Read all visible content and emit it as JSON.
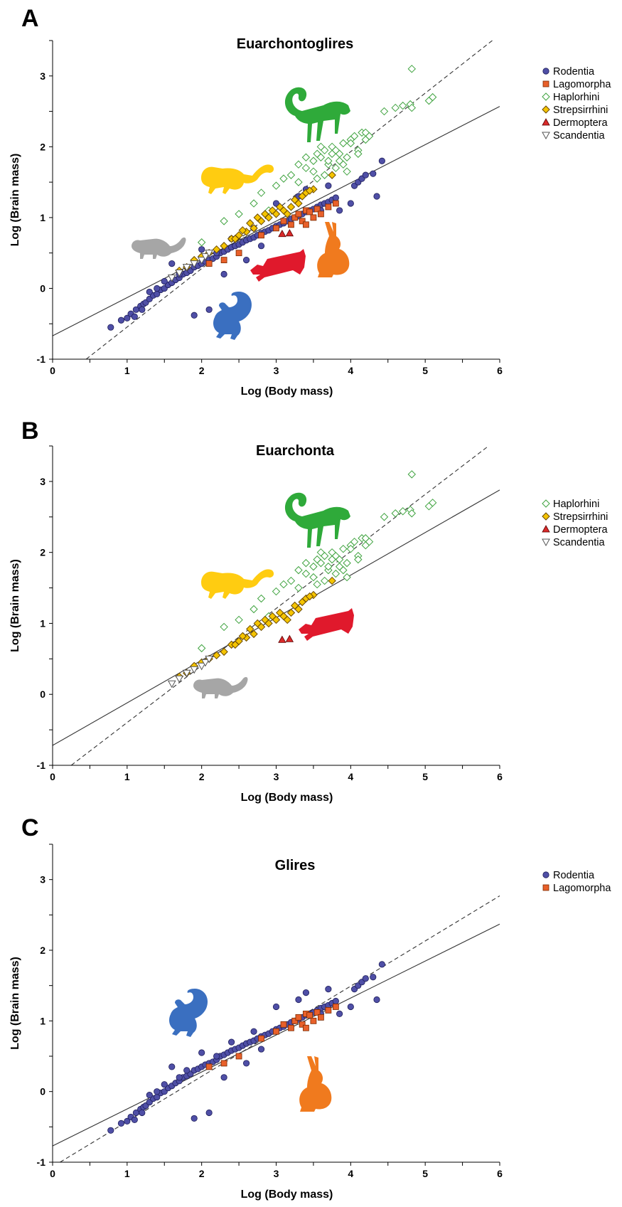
{
  "panels": [
    {
      "letter": "A"
    },
    {
      "letter": "B"
    },
    {
      "letter": "C"
    }
  ],
  "colors": {
    "rodentia": "#4f4fa6",
    "lagomorpha": "#e8602a",
    "haplorhini": "#3fa33f",
    "strepsirrhini": "#f5c400",
    "dermoptera": "#d92a2a",
    "scandentia": "#ffffff",
    "monkey_silhouette": "#2faa3a",
    "lemur_silhouette": "#ffcc11",
    "treeshrew_silhouette": "#a6a6a6",
    "colugo_silhouette": "#e0192c",
    "hare_silhouette": "#f07a1e",
    "squirrel_silhouette": "#3a6fc0"
  },
  "silhouette_icons": {
    "A": [
      "monkey-silhouette",
      "lemur-silhouette",
      "treeshrew-silhouette",
      "colugo-silhouette",
      "hare-silhouette",
      "squirrel-silhouette"
    ],
    "B": [
      "monkey-silhouette",
      "lemur-silhouette",
      "colugo-silhouette",
      "treeshrew-silhouette"
    ],
    "C": [
      "squirrel-silhouette",
      "hare-silhouette"
    ]
  },
  "chart_data": [
    {
      "panel": "A",
      "type": "scatter",
      "title": "Euarchontoglires",
      "xlabel": "Log (Body mass)",
      "ylabel": "Log (Brain mass)",
      "xlim": [
        0,
        6
      ],
      "ylim": [
        -1,
        3.5
      ],
      "xticks": [
        "0",
        "1",
        "2",
        "3",
        "4",
        "5",
        "6"
      ],
      "yticks": [
        "-1",
        "0",
        "1",
        "2",
        "3"
      ],
      "legend_position": "right",
      "legend": [
        "Rodentia",
        "Lagomorpha",
        "Haplorhini",
        "Strepsirrhini",
        "Dermoptera",
        "Scandentia"
      ],
      "regression_lines": [
        {
          "style": "solid",
          "x": [
            0,
            6
          ],
          "y": [
            -0.67,
            2.57
          ]
        },
        {
          "style": "dashed",
          "x": [
            0.45,
            5.9
          ],
          "y": [
            -1.0,
            3.5
          ]
        }
      ],
      "series": [
        {
          "name": "Rodentia",
          "marker": "circle",
          "x": [
            0.78,
            0.92,
            1.0,
            1.05,
            1.12,
            1.18,
            1.22,
            1.25,
            1.3,
            1.35,
            1.4,
            1.45,
            1.5,
            1.55,
            1.6,
            1.65,
            1.7,
            1.75,
            1.8,
            1.85,
            1.9,
            1.95,
            2.0,
            2.05,
            2.1,
            2.15,
            2.2,
            2.25,
            2.3,
            2.35,
            2.4,
            2.45,
            2.5,
            2.55,
            2.6,
            2.65,
            2.7,
            2.75,
            2.8,
            2.85,
            2.9,
            2.95,
            3.0,
            3.05,
            3.1,
            3.15,
            3.2,
            3.25,
            3.3,
            3.35,
            3.4,
            3.45,
            3.5,
            3.55,
            3.6,
            3.65,
            3.7,
            3.75,
            3.8,
            4.05,
            4.1,
            4.15,
            4.2,
            4.3,
            4.35,
            4.42,
            1.9,
            2.1,
            1.5,
            1.7,
            1.3,
            2.0,
            2.6,
            2.3,
            1.2,
            1.6,
            2.4,
            2.8,
            3.3,
            3.6,
            1.1,
            1.4,
            1.8,
            2.2,
            2.7,
            3.0,
            3.4,
            3.7,
            3.85,
            4.0
          ],
          "y": [
            -0.55,
            -0.45,
            -0.42,
            -0.36,
            -0.3,
            -0.25,
            -0.22,
            -0.2,
            -0.15,
            -0.1,
            -0.08,
            -0.02,
            0.0,
            0.05,
            0.08,
            0.12,
            0.15,
            0.2,
            0.22,
            0.25,
            0.3,
            0.32,
            0.35,
            0.38,
            0.4,
            0.42,
            0.45,
            0.5,
            0.52,
            0.55,
            0.58,
            0.6,
            0.62,
            0.65,
            0.68,
            0.7,
            0.72,
            0.75,
            0.78,
            0.8,
            0.82,
            0.85,
            0.88,
            0.9,
            0.92,
            0.95,
            0.98,
            1.0,
            1.02,
            1.05,
            1.08,
            1.1,
            1.12,
            1.15,
            1.18,
            1.2,
            1.22,
            1.25,
            1.28,
            1.45,
            1.5,
            1.55,
            1.6,
            1.62,
            1.3,
            1.8,
            -0.38,
            -0.3,
            0.1,
            0.2,
            -0.05,
            0.55,
            0.4,
            0.2,
            -0.3,
            0.35,
            0.7,
            0.6,
            1.3,
            1.1,
            -0.4,
            0.0,
            0.3,
            0.5,
            0.85,
            1.2,
            1.4,
            1.45,
            1.1,
            1.2
          ]
        },
        {
          "name": "Lagomorpha",
          "marker": "square",
          "x": [
            2.1,
            2.3,
            2.5,
            2.8,
            3.0,
            3.1,
            3.2,
            3.25,
            3.3,
            3.35,
            3.4,
            3.45,
            3.5,
            3.55,
            3.6,
            3.7,
            3.8,
            3.4
          ],
          "y": [
            0.35,
            0.4,
            0.5,
            0.75,
            0.85,
            0.95,
            0.9,
            1.0,
            1.05,
            0.95,
            1.1,
            1.08,
            1.0,
            1.12,
            1.05,
            1.15,
            1.2,
            0.9
          ]
        },
        {
          "name": "Haplorhini",
          "marker": "diamond",
          "x": [
            2.0,
            2.3,
            2.5,
            2.7,
            2.8,
            2.9,
            3.0,
            3.1,
            3.2,
            3.3,
            3.4,
            3.5,
            3.55,
            3.6,
            3.65,
            3.7,
            3.75,
            3.8,
            3.85,
            3.9,
            3.95,
            4.0,
            4.05,
            4.1,
            4.15,
            4.2,
            4.25,
            3.5,
            3.6,
            3.7,
            3.8,
            3.9,
            4.0,
            4.1,
            3.3,
            3.4,
            3.65,
            3.75,
            3.85,
            4.45,
            4.6,
            4.7,
            4.8,
            4.82,
            5.05,
            5.1,
            4.82,
            3.55,
            3.95,
            4.2
          ],
          "y": [
            0.65,
            0.95,
            1.05,
            1.2,
            1.35,
            1.1,
            1.45,
            1.55,
            1.6,
            1.75,
            1.7,
            1.8,
            1.9,
            1.85,
            1.95,
            1.75,
            2.0,
            1.7,
            1.9,
            2.05,
            1.85,
            2.1,
            2.15,
            1.95,
            2.2,
            2.1,
            2.15,
            1.65,
            2.0,
            1.8,
            1.95,
            1.75,
            2.05,
            1.9,
            1.5,
            1.85,
            1.6,
            1.9,
            1.8,
            2.5,
            2.55,
            2.58,
            2.6,
            3.1,
            2.65,
            2.7,
            2.55,
            1.55,
            1.65,
            2.2
          ]
        },
        {
          "name": "Strepsirrhini",
          "marker": "diamond",
          "x": [
            1.7,
            1.8,
            1.9,
            2.0,
            2.1,
            2.2,
            2.3,
            2.4,
            2.5,
            2.6,
            2.7,
            2.8,
            2.9,
            3.0,
            3.1,
            3.2,
            3.3,
            3.4,
            3.5,
            2.45,
            2.55,
            2.65,
            2.75,
            2.85,
            2.95,
            3.05,
            3.15,
            3.25,
            3.35,
            3.45,
            3.75
          ],
          "y": [
            0.25,
            0.3,
            0.4,
            0.45,
            0.5,
            0.55,
            0.6,
            0.7,
            0.75,
            0.8,
            0.85,
            0.95,
            1.0,
            1.05,
            1.1,
            1.15,
            1.2,
            1.35,
            1.4,
            0.7,
            0.82,
            0.92,
            1.0,
            1.05,
            1.1,
            1.15,
            1.05,
            1.25,
            1.3,
            1.38,
            1.6
          ]
        },
        {
          "name": "Dermoptera",
          "marker": "triangle",
          "x": [
            3.08,
            3.18
          ],
          "y": [
            0.77,
            0.78
          ]
        },
        {
          "name": "Scandentia",
          "marker": "triangle-down",
          "x": [
            1.6,
            1.7,
            1.8,
            1.9,
            2.0,
            2.05,
            2.1
          ],
          "y": [
            0.15,
            0.22,
            0.3,
            0.35,
            0.4,
            0.45,
            0.5
          ]
        }
      ]
    },
    {
      "panel": "B",
      "type": "scatter",
      "title": "Euarchonta",
      "xlabel": "Log (Body mass)",
      "ylabel": "Log (Brain mass)",
      "xlim": [
        0,
        6
      ],
      "ylim": [
        -1,
        3.5
      ],
      "xticks": [
        "0",
        "1",
        "2",
        "3",
        "4",
        "5",
        "6"
      ],
      "yticks": [
        "-1",
        "0",
        "1",
        "2",
        "3"
      ],
      "legend_position": "right",
      "legend": [
        "Haplorhini",
        "Strepsirrhini",
        "Dermoptera",
        "Scandentia"
      ],
      "regression_lines": [
        {
          "style": "solid",
          "x": [
            0,
            6
          ],
          "y": [
            -0.72,
            2.88
          ]
        },
        {
          "style": "dashed",
          "x": [
            0.25,
            5.85
          ],
          "y": [
            -1.0,
            3.5
          ]
        }
      ],
      "series": [
        {
          "name": "Haplorhini",
          "marker": "diamond",
          "x": [
            2.0,
            2.3,
            2.5,
            2.7,
            2.8,
            2.9,
            3.0,
            3.1,
            3.2,
            3.3,
            3.4,
            3.5,
            3.55,
            3.6,
            3.65,
            3.7,
            3.75,
            3.8,
            3.85,
            3.9,
            3.95,
            4.0,
            4.05,
            4.1,
            4.15,
            4.2,
            4.25,
            3.5,
            3.6,
            3.7,
            3.8,
            3.9,
            4.0,
            4.1,
            3.3,
            3.4,
            3.65,
            3.75,
            3.85,
            4.45,
            4.6,
            4.7,
            4.8,
            4.82,
            5.05,
            5.1,
            4.82,
            3.55,
            3.95,
            4.2
          ],
          "y": [
            0.65,
            0.95,
            1.05,
            1.2,
            1.35,
            1.1,
            1.45,
            1.55,
            1.6,
            1.75,
            1.7,
            1.8,
            1.9,
            1.85,
            1.95,
            1.75,
            2.0,
            1.7,
            1.9,
            2.05,
            1.85,
            2.1,
            2.15,
            1.95,
            2.2,
            2.1,
            2.15,
            1.65,
            2.0,
            1.8,
            1.95,
            1.75,
            2.05,
            1.9,
            1.5,
            1.85,
            1.6,
            1.9,
            1.8,
            2.5,
            2.55,
            2.58,
            2.6,
            3.1,
            2.65,
            2.7,
            2.55,
            1.55,
            1.65,
            2.2
          ]
        },
        {
          "name": "Strepsirrhini",
          "marker": "diamond",
          "x": [
            1.7,
            1.8,
            1.9,
            2.0,
            2.1,
            2.2,
            2.3,
            2.4,
            2.5,
            2.6,
            2.7,
            2.8,
            2.9,
            3.0,
            3.1,
            3.2,
            3.3,
            3.4,
            3.5,
            2.45,
            2.55,
            2.65,
            2.75,
            2.85,
            2.95,
            3.05,
            3.15,
            3.25,
            3.35,
            3.45,
            3.75
          ],
          "y": [
            0.25,
            0.3,
            0.4,
            0.45,
            0.5,
            0.55,
            0.6,
            0.7,
            0.75,
            0.8,
            0.85,
            0.95,
            1.0,
            1.05,
            1.1,
            1.15,
            1.2,
            1.35,
            1.4,
            0.7,
            0.82,
            0.92,
            1.0,
            1.05,
            1.1,
            1.15,
            1.05,
            1.25,
            1.3,
            1.38,
            1.6
          ]
        },
        {
          "name": "Dermoptera",
          "marker": "triangle",
          "x": [
            3.08,
            3.18
          ],
          "y": [
            0.77,
            0.78
          ]
        },
        {
          "name": "Scandentia",
          "marker": "triangle-down",
          "x": [
            1.6,
            1.7,
            1.8,
            1.9,
            2.0,
            2.05,
            2.1
          ],
          "y": [
            0.15,
            0.22,
            0.3,
            0.35,
            0.4,
            0.45,
            0.5
          ]
        }
      ]
    },
    {
      "panel": "C",
      "type": "scatter",
      "title": "Glires",
      "xlabel": "Log (Body mass)",
      "ylabel": "Log (Brain mass)",
      "xlim": [
        0,
        6
      ],
      "ylim": [
        -1,
        3.5
      ],
      "xticks": [
        "0",
        "1",
        "2",
        "3",
        "4",
        "5",
        "6"
      ],
      "yticks": [
        "-1",
        "0",
        "1",
        "2",
        "3"
      ],
      "legend_position": "right",
      "legend": [
        "Rodentia",
        "Lagomorpha"
      ],
      "regression_lines": [
        {
          "style": "solid",
          "x": [
            0,
            6
          ],
          "y": [
            -0.77,
            2.37
          ]
        },
        {
          "style": "dashed",
          "x": [
            0.1,
            6
          ],
          "y": [
            -1.0,
            2.77
          ]
        }
      ],
      "series": [
        {
          "name": "Rodentia",
          "marker": "circle",
          "x": [
            0.78,
            0.92,
            1.0,
            1.05,
            1.12,
            1.18,
            1.22,
            1.25,
            1.3,
            1.35,
            1.4,
            1.45,
            1.5,
            1.55,
            1.6,
            1.65,
            1.7,
            1.75,
            1.8,
            1.85,
            1.9,
            1.95,
            2.0,
            2.05,
            2.1,
            2.15,
            2.2,
            2.25,
            2.3,
            2.35,
            2.4,
            2.45,
            2.5,
            2.55,
            2.6,
            2.65,
            2.7,
            2.75,
            2.8,
            2.85,
            2.9,
            2.95,
            3.0,
            3.05,
            3.1,
            3.15,
            3.2,
            3.25,
            3.3,
            3.35,
            3.4,
            3.45,
            3.5,
            3.55,
            3.6,
            3.65,
            3.7,
            3.75,
            3.8,
            4.05,
            4.1,
            4.15,
            4.2,
            4.3,
            4.35,
            4.42,
            1.9,
            2.1,
            1.5,
            1.7,
            1.3,
            2.0,
            2.6,
            2.3,
            1.2,
            1.6,
            2.4,
            2.8,
            3.3,
            3.6,
            1.1,
            1.4,
            1.8,
            2.2,
            2.7,
            3.0,
            3.4,
            3.7,
            3.85,
            4.0
          ],
          "y": [
            -0.55,
            -0.45,
            -0.42,
            -0.36,
            -0.3,
            -0.25,
            -0.22,
            -0.2,
            -0.15,
            -0.1,
            -0.08,
            -0.02,
            0.0,
            0.05,
            0.08,
            0.12,
            0.15,
            0.2,
            0.22,
            0.25,
            0.3,
            0.32,
            0.35,
            0.38,
            0.4,
            0.42,
            0.45,
            0.5,
            0.52,
            0.55,
            0.58,
            0.6,
            0.62,
            0.65,
            0.68,
            0.7,
            0.72,
            0.75,
            0.78,
            0.8,
            0.82,
            0.85,
            0.88,
            0.9,
            0.92,
            0.95,
            0.98,
            1.0,
            1.02,
            1.05,
            1.08,
            1.1,
            1.12,
            1.15,
            1.18,
            1.2,
            1.22,
            1.25,
            1.28,
            1.45,
            1.5,
            1.55,
            1.6,
            1.62,
            1.3,
            1.8,
            -0.38,
            -0.3,
            0.1,
            0.2,
            -0.05,
            0.55,
            0.4,
            0.2,
            -0.3,
            0.35,
            0.7,
            0.6,
            1.3,
            1.1,
            -0.4,
            0.0,
            0.3,
            0.5,
            0.85,
            1.2,
            1.4,
            1.45,
            1.1,
            1.2
          ]
        },
        {
          "name": "Lagomorpha",
          "marker": "square",
          "x": [
            2.1,
            2.3,
            2.5,
            2.8,
            3.0,
            3.1,
            3.2,
            3.25,
            3.3,
            3.35,
            3.4,
            3.45,
            3.5,
            3.55,
            3.6,
            3.7,
            3.8,
            3.4
          ],
          "y": [
            0.35,
            0.4,
            0.5,
            0.75,
            0.85,
            0.95,
            0.9,
            1.0,
            1.05,
            0.95,
            1.1,
            1.08,
            1.0,
            1.12,
            1.05,
            1.15,
            1.2,
            0.9
          ]
        }
      ]
    }
  ]
}
